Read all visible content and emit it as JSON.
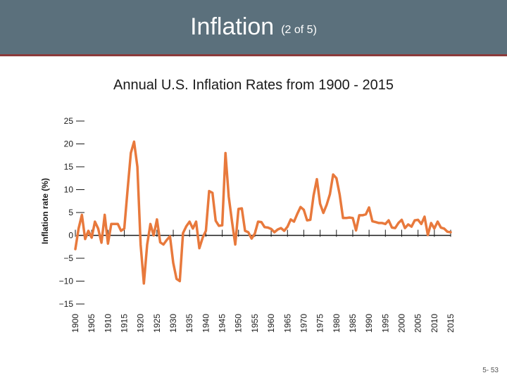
{
  "slide": {
    "title": "Inflation",
    "title_suffix": "(2 of 5)",
    "subtitle": "Annual U.S. Inflation Rates from 1900 - 2015",
    "page_number": "5- 53"
  },
  "colors": {
    "series": "#e8793c",
    "axis": "#1a1a1a",
    "header": "#5b707c"
  },
  "chart_data": {
    "type": "line",
    "title": "Annual U.S. Inflation Rates from 1900 - 2015",
    "xlabel": "",
    "ylabel": "Inflation rate (%)",
    "xlim": [
      1900,
      2015
    ],
    "ylim": [
      -15,
      25
    ],
    "x_ticks": [
      1900,
      1905,
      1910,
      1915,
      1920,
      1925,
      1930,
      1935,
      1940,
      1945,
      1950,
      1955,
      1960,
      1965,
      1970,
      1975,
      1980,
      1985,
      1990,
      1995,
      2000,
      2005,
      2010,
      2015
    ],
    "y_ticks": [
      25,
      20,
      15,
      10,
      5,
      0,
      -5,
      -10,
      -15
    ],
    "y_tick_labels": [
      "25",
      "20",
      "15",
      "10",
      "5",
      "0",
      "−5",
      "−10",
      "−15"
    ],
    "grid": false,
    "series": [
      {
        "name": "Inflation rate",
        "x": [
          1900,
          1901,
          1902,
          1903,
          1904,
          1905,
          1906,
          1907,
          1908,
          1909,
          1910,
          1911,
          1912,
          1913,
          1914,
          1915,
          1916,
          1917,
          1918,
          1919,
          1920,
          1921,
          1922,
          1923,
          1924,
          1925,
          1926,
          1927,
          1928,
          1929,
          1930,
          1931,
          1932,
          1933,
          1934,
          1935,
          1936,
          1937,
          1938,
          1939,
          1940,
          1941,
          1942,
          1943,
          1944,
          1945,
          1946,
          1947,
          1948,
          1949,
          1950,
          1951,
          1952,
          1953,
          1954,
          1955,
          1956,
          1957,
          1958,
          1959,
          1960,
          1961,
          1962,
          1963,
          1964,
          1965,
          1966,
          1967,
          1968,
          1969,
          1970,
          1971,
          1972,
          1973,
          1974,
          1975,
          1976,
          1977,
          1978,
          1979,
          1980,
          1981,
          1982,
          1983,
          1984,
          1985,
          1986,
          1987,
          1988,
          1989,
          1990,
          1991,
          1992,
          1993,
          1994,
          1995,
          1996,
          1997,
          1998,
          1999,
          2000,
          2001,
          2002,
          2003,
          2004,
          2005,
          2006,
          2007,
          2008,
          2009,
          2010,
          2011,
          2012,
          2013,
          2014,
          2015
        ],
        "values": [
          -3,
          1.5,
          4.5,
          -0.8,
          1,
          -0.5,
          3,
          1.5,
          -1.6,
          4.5,
          -1.8,
          2.5,
          2.5,
          2.5,
          1,
          1.5,
          10,
          18,
          20.5,
          15,
          -2,
          -10.5,
          -2,
          2.5,
          0,
          3.5,
          -1.5,
          -2,
          -1,
          -0.2,
          -6,
          -9.5,
          -10,
          0.5,
          2,
          3,
          1.5,
          3,
          -2.8,
          -0.5,
          1,
          9.7,
          9.3,
          3.2,
          2.1,
          2.2,
          18,
          8.5,
          3,
          -2,
          5.8,
          5.9,
          1,
          0.7,
          -0.7,
          0.4,
          3,
          2.9,
          1.8,
          1.7,
          1.4,
          0.7,
          1.3,
          1.6,
          1,
          1.9,
          3.5,
          3,
          4.7,
          6.2,
          5.6,
          3.3,
          3.4,
          8.7,
          12.3,
          6.9,
          4.9,
          6.7,
          9,
          13.3,
          12.5,
          8.9,
          3.8,
          3.8,
          3.9,
          3.8,
          1.1,
          4.4,
          4.4,
          4.6,
          6.1,
          3.1,
          2.9,
          2.7,
          2.7,
          2.5,
          3.3,
          1.7,
          1.6,
          2.7,
          3.4,
          1.6,
          2.4,
          1.9,
          3.3,
          3.4,
          2.5,
          4.1,
          0.1,
          2.7,
          1.5,
          3,
          1.7,
          1.5,
          0.8,
          0.7
        ]
      }
    ]
  }
}
